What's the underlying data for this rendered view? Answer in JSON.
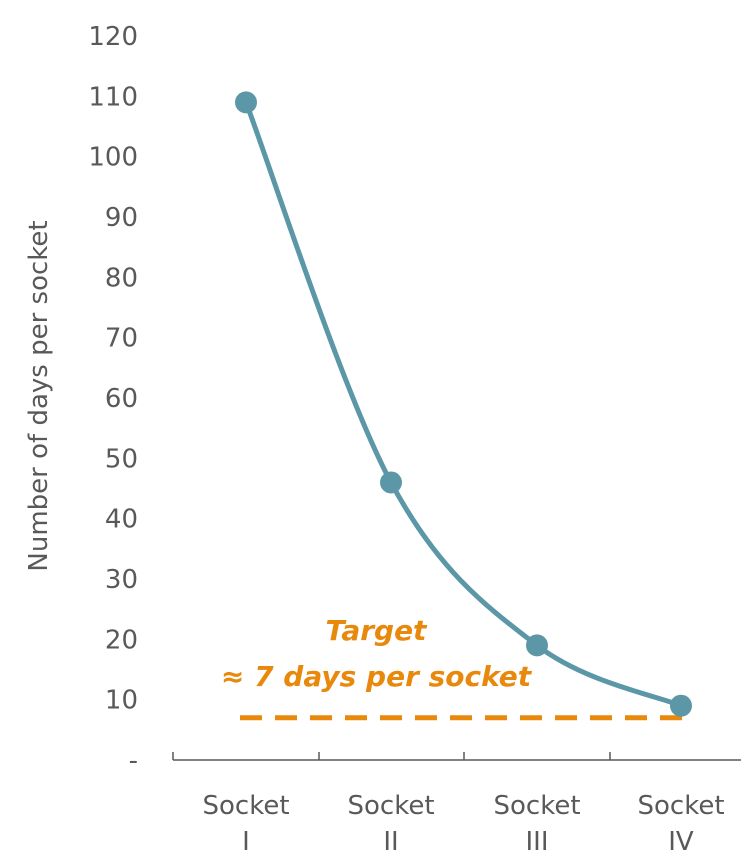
{
  "chart_data": {
    "type": "line",
    "title": "",
    "xlabel": "",
    "ylabel": "Number of days per socket",
    "categories": [
      [
        "Socket",
        "I"
      ],
      [
        "Socket",
        "II"
      ],
      [
        "Socket",
        "III"
      ],
      [
        "Socket",
        "IV"
      ]
    ],
    "series": [
      {
        "values": [
          109,
          46,
          19,
          9
        ],
        "color": "#5B97A7",
        "smooth": true
      }
    ],
    "target": {
      "value": 7,
      "label_line1": "Target",
      "label_line2": "≈ 7 days per socket",
      "color": "#E8890C",
      "style": "dashed"
    },
    "y_ticks": [
      "-",
      "10",
      "20",
      "30",
      "40",
      "50",
      "60",
      "70",
      "80",
      "90",
      "100",
      "110",
      "120"
    ],
    "ylim": [
      0,
      120
    ],
    "grid": false,
    "legend": "none"
  }
}
